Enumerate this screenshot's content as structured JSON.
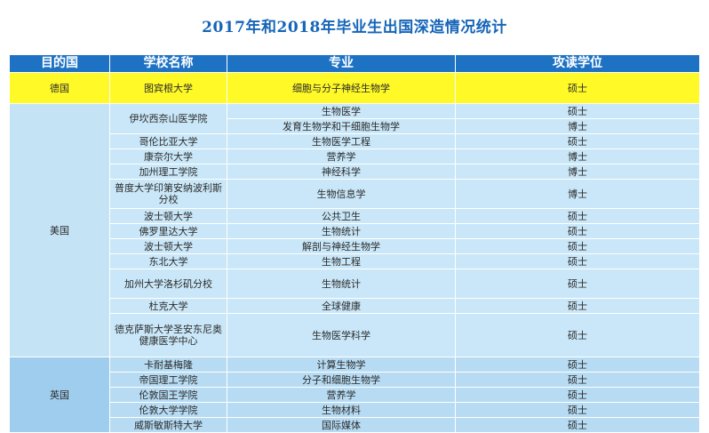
{
  "title": "2017年和2018年毕业生出国深造情况统计",
  "headers": {
    "country": "目的国",
    "school": "学校名称",
    "major": "专业",
    "degree": "攻读学位"
  },
  "germany": {
    "country": "德国",
    "rows": [
      {
        "school": "图宾根大学",
        "major": "细胞与分子神经生物学",
        "degree": "硕士"
      }
    ]
  },
  "usa": {
    "country": "美国",
    "rows": [
      {
        "school": "伊坎西奈山医学院",
        "major": "生物医学",
        "degree": "硕士"
      },
      {
        "school": "",
        "major": "发育生物学和干细胞生物学",
        "degree": "博士"
      },
      {
        "school": "哥伦比亚大学",
        "major": "生物医学工程",
        "degree": "硕士"
      },
      {
        "school": "康奈尔大学",
        "major": "营养学",
        "degree": "博士"
      },
      {
        "school": "加州理工学院",
        "major": "神经科学",
        "degree": "博士"
      },
      {
        "school": "普度大学印第安纳波利斯分校",
        "major": "生物信息学",
        "degree": "博士"
      },
      {
        "school": "波士顿大学",
        "major": "公共卫生",
        "degree": "硕士"
      },
      {
        "school": "佛罗里达大学",
        "major": "生物统计",
        "degree": "硕士"
      },
      {
        "school": "波士顿大学",
        "major": "解剖与神经生物学",
        "degree": "硕士"
      },
      {
        "school": "东北大学",
        "major": "生物工程",
        "degree": "硕士"
      },
      {
        "school": "加州大学洛杉矶分校",
        "major": "生物统计",
        "degree": "硕士"
      },
      {
        "school": "杜克大学",
        "major": "全球健康",
        "degree": "硕士"
      },
      {
        "school": "德克萨斯大学圣安东尼奥健康医学中心",
        "major": "生物医学科学",
        "degree": "硕士"
      }
    ]
  },
  "uk": {
    "country": "英国",
    "rows": [
      {
        "school": "卡耐基梅隆",
        "major": "计算生物学",
        "degree": "硕士"
      },
      {
        "school": "帝国理工学院",
        "major": "分子和细胞生物学",
        "degree": "硕士"
      },
      {
        "school": "伦敦国王学院",
        "major": "营养学",
        "degree": "硕士"
      },
      {
        "school": "伦敦大学学院",
        "major": "生物材料",
        "degree": "硕士"
      },
      {
        "school": "威斯敏斯特大学",
        "major": "国际媒体",
        "degree": "硕士"
      }
    ]
  }
}
